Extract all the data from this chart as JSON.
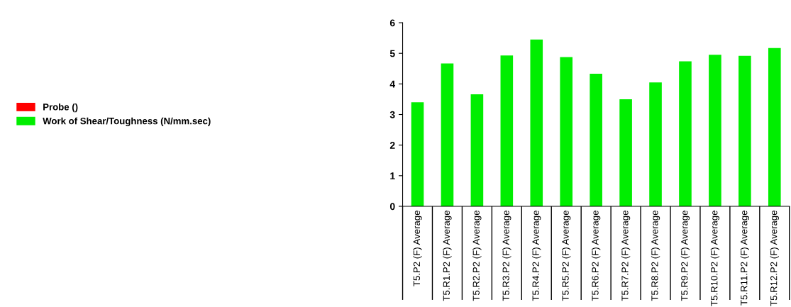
{
  "chart_data": {
    "type": "bar",
    "categories": [
      "T5.P2 (F) Average",
      "T5.R1.P2 (F) Average",
      "T5.R2.P2 (F) Average",
      "T5.R3.P2 (F) Average",
      "T5.R4.P2 (F) Average",
      "T5.R5.P2 (F) Average",
      "T5.R6.P2 (F) Average",
      "T5.R7.P2 (F) Average",
      "T5.R8.P2 (F) Average",
      "T5.R9.P2 (F) Average",
      "T5.R10.P2 (F) Average",
      "T5.R11.P2 (F) Average",
      "T5.R12.P2 (F) Average"
    ],
    "series": [
      {
        "name": "Probe ()",
        "color": "#ff0000",
        "values": [
          null,
          null,
          null,
          null,
          null,
          null,
          null,
          null,
          null,
          null,
          null,
          null,
          null
        ]
      },
      {
        "name": "Work of Shear/Toughness (N/mm.sec)",
        "color": "#00ee00",
        "values": [
          3.4,
          4.67,
          3.66,
          4.93,
          5.45,
          4.88,
          4.33,
          3.5,
          4.05,
          4.74,
          4.95,
          4.92,
          5.17
        ]
      }
    ],
    "ylim": [
      0,
      6
    ],
    "yticks": [
      0,
      1,
      2,
      3,
      4,
      5,
      6
    ],
    "grid": false,
    "legend": "left"
  }
}
